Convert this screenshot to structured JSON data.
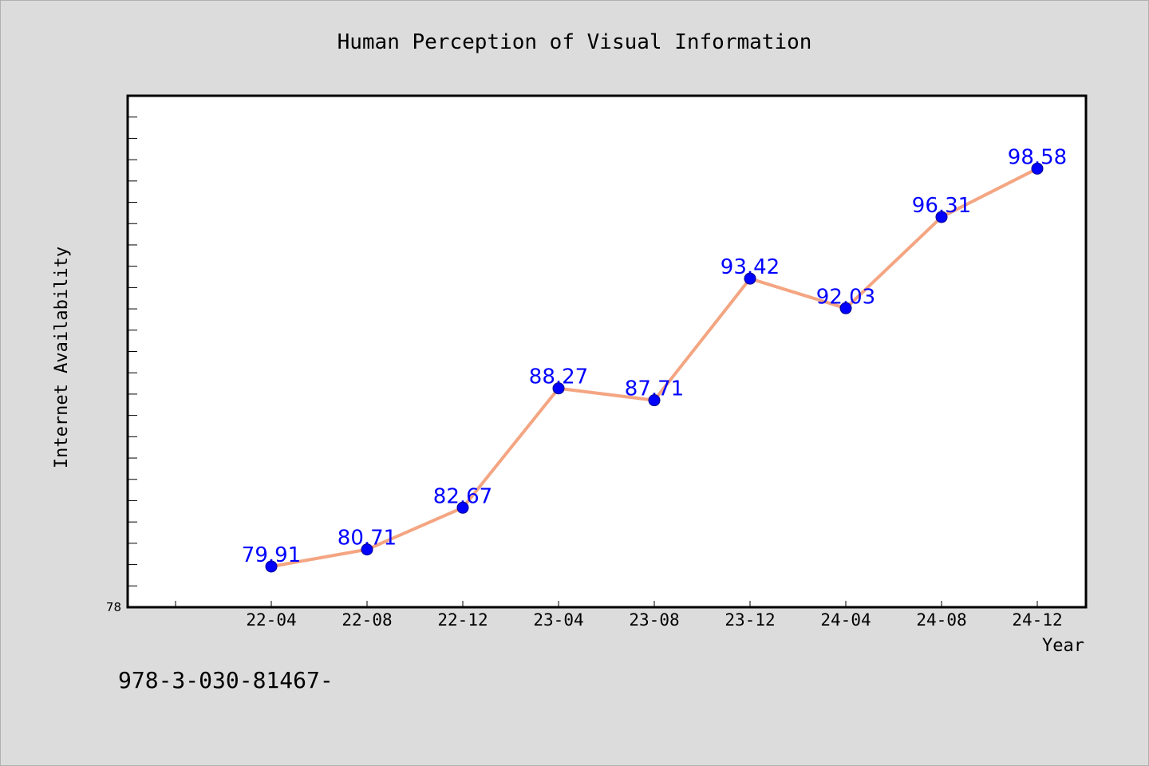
{
  "chart_data": {
    "type": "line",
    "title": "Human Perception of Visual Information",
    "xlabel": "Year",
    "ylabel": "Internet Availability",
    "categories": [
      "22-04",
      "22-08",
      "22-12",
      "23-04",
      "23-08",
      "23-12",
      "24-04",
      "24-08",
      "24-12"
    ],
    "series": [
      {
        "values": [
          79.91,
          80.71,
          82.67,
          88.27,
          87.71,
          93.42,
          92.03,
          96.31,
          98.58
        ]
      }
    ],
    "ylim": [
      78,
      102
    ],
    "y_tick_labels": [
      "78"
    ],
    "grid": false,
    "colors": {
      "line": "#f4a582",
      "marker": "#0000ff",
      "data_label": "#0000ff",
      "background": "#dcdcdc",
      "plot_background": "#ffffff"
    }
  },
  "footer_text": "978-3-030-81467-"
}
